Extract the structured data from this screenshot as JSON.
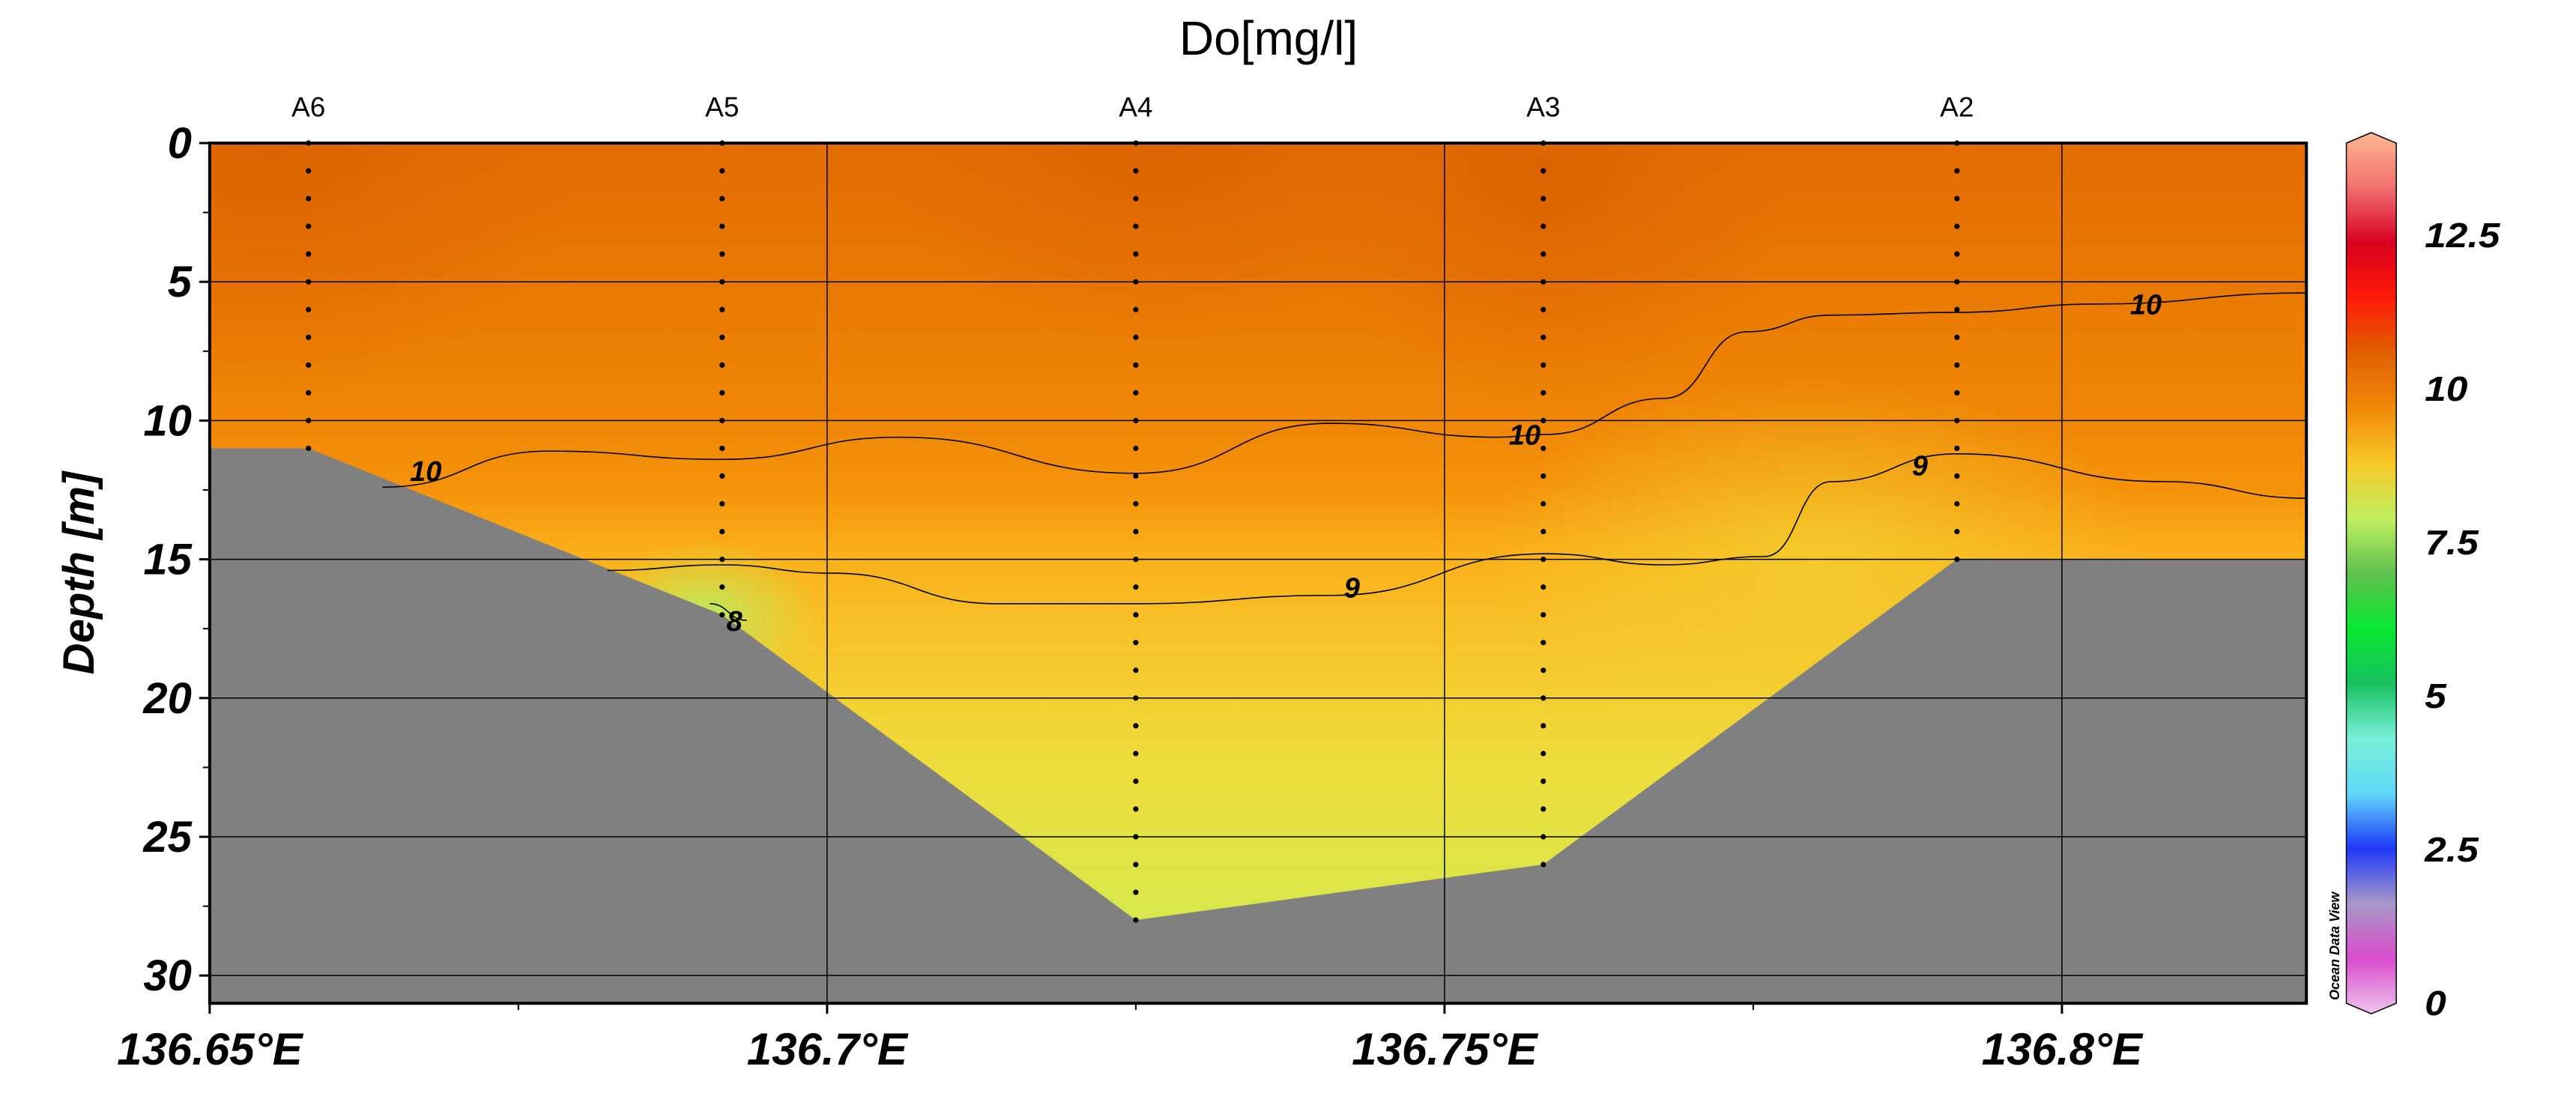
{
  "chart_data": {
    "type": "heatmap",
    "subtype": "section-contour",
    "title": "Do[mg/l]",
    "xlabel": "",
    "ylabel": "Depth [m]",
    "xlim": [
      136.65,
      136.8198
    ],
    "ylim": [
      31,
      0
    ],
    "x_ticks": [
      136.65,
      136.7,
      136.75,
      136.8
    ],
    "x_tick_labels": [
      "136.65°E",
      "136.7°E",
      "136.75°E",
      "136.8°E"
    ],
    "y_ticks": [
      0,
      5,
      10,
      15,
      20,
      25,
      30
    ],
    "y_tick_labels": [
      "0",
      "5",
      "10",
      "15",
      "20",
      "25",
      "30"
    ],
    "grid": true,
    "stations": [
      {
        "name": "A6",
        "lon": 136.658,
        "bottom_depth": 11
      },
      {
        "name": "A5",
        "lon": 136.6915,
        "bottom_depth": 17
      },
      {
        "name": "A4",
        "lon": 136.725,
        "bottom_depth": 28
      },
      {
        "name": "A3",
        "lon": 136.758,
        "bottom_depth": 26
      },
      {
        "name": "A2",
        "lon": 136.7915,
        "bottom_depth": 15
      }
    ],
    "bottom_profile": [
      [
        136.65,
        11
      ],
      [
        136.658,
        11
      ],
      [
        136.6915,
        17
      ],
      [
        136.725,
        28
      ],
      [
        136.758,
        26
      ],
      [
        136.7915,
        15
      ],
      [
        136.8198,
        15
      ]
    ],
    "contours": [
      {
        "level": "10",
        "points": [
          [
            136.664,
            12.4
          ],
          [
            136.6775,
            11.1
          ],
          [
            136.6915,
            11.4
          ],
          [
            136.7058,
            10.6
          ],
          [
            136.725,
            11.9
          ],
          [
            136.7408,
            10.1
          ],
          [
            136.7543,
            10.6
          ],
          [
            136.7582,
            10.5
          ],
          [
            136.7678,
            9.2
          ],
          [
            136.7745,
            6.8
          ],
          [
            136.7813,
            6.2
          ],
          [
            136.7915,
            6.1
          ],
          [
            136.8028,
            5.8
          ],
          [
            136.8198,
            5.4
          ]
        ],
        "labels": [
          [
            136.6675,
            11.9
          ],
          [
            136.7565,
            10.6
          ],
          [
            136.8068,
            5.9
          ]
        ]
      },
      {
        "level": "9",
        "points": [
          [
            136.6822,
            15.4
          ],
          [
            136.6915,
            15.2
          ],
          [
            136.7004,
            15.5
          ],
          [
            136.7139,
            16.6
          ],
          [
            136.725,
            16.6
          ],
          [
            136.7408,
            16.3
          ],
          [
            136.7582,
            14.8
          ],
          [
            136.7678,
            15.2
          ],
          [
            136.7759,
            14.9
          ],
          [
            136.7813,
            12.2
          ],
          [
            136.7915,
            11.2
          ],
          [
            136.8082,
            12.2
          ],
          [
            136.8198,
            12.8
          ]
        ],
        "labels": [
          [
            136.7425,
            16.1
          ],
          [
            136.7885,
            11.7
          ]
        ]
      },
      {
        "level": "8",
        "points": [
          [
            136.6905,
            16.6
          ],
          [
            136.6935,
            17.2
          ]
        ],
        "labels": [
          [
            136.6925,
            17.3
          ]
        ]
      }
    ],
    "colorbar": {
      "range": [
        0,
        14
      ],
      "ticks": [
        0,
        2.5,
        5,
        7.5,
        10,
        12.5
      ],
      "tick_labels": [
        "0",
        "2.5",
        "5",
        "7.5",
        "10",
        "12.5"
      ],
      "stops": [
        "#eec4ec",
        "#d84ccc",
        "#a898c8",
        "#2038f8",
        "#60d8f8",
        "#78f0d8",
        "#18c060",
        "#08e830",
        "#60c050",
        "#c0f060",
        "#f8c828",
        "#f08808",
        "#e06000",
        "#ff1a08",
        "#d80020",
        "#f07070",
        "#ffb890"
      ]
    },
    "land_color": "#808080",
    "credit": "Ocean Data View"
  }
}
